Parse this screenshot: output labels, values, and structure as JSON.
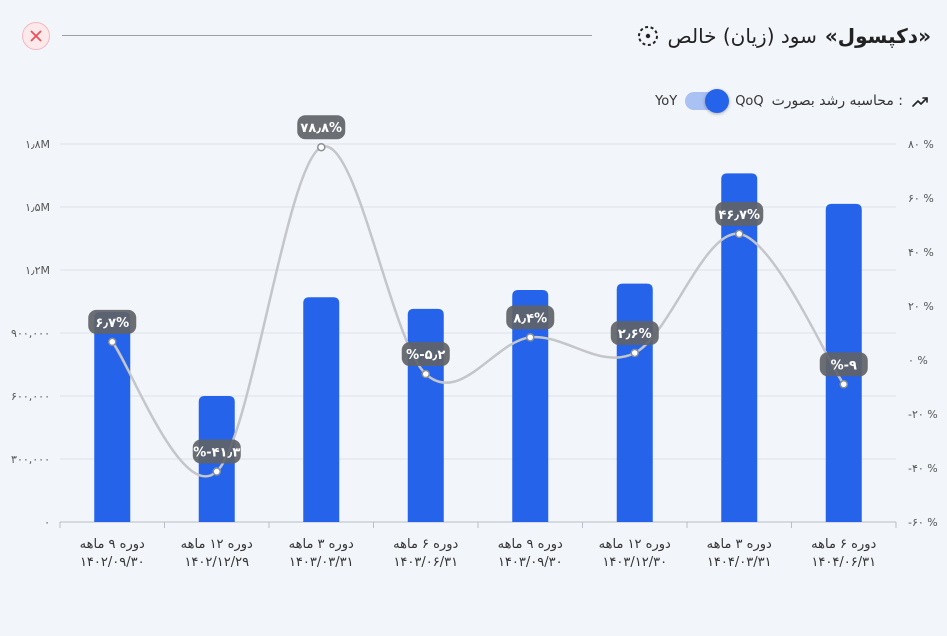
{
  "header": {
    "title_prefix": "سود (زیان) خالص",
    "title_company": "«دکپسول»"
  },
  "controls": {
    "growth_label": "محاسبه رشد بصورت :",
    "option_qoq": "QoQ",
    "option_yoy": "YoY",
    "selected": "QoQ"
  },
  "colors": {
    "bar": "#2563eb",
    "line": "#c4c6ca",
    "label_bg": "#5f6368",
    "close": "#e8505b"
  },
  "chart_data": {
    "type": "bar",
    "categories": [
      [
        "دوره ۹ ماهه",
        "۱۴۰۲/۰۹/۳۰"
      ],
      [
        "دوره ۱۲ ماهه",
        "۱۴۰۲/۱۲/۲۹"
      ],
      [
        "دوره ۳ ماهه",
        "۱۴۰۳/۰۳/۳۱"
      ],
      [
        "دوره ۶ ماهه",
        "۱۴۰۳/۰۶/۳۱"
      ],
      [
        "دوره ۹ ماهه",
        "۱۴۰۳/۰۹/۳۰"
      ],
      [
        "دوره ۱۲ ماهه",
        "۱۴۰۳/۱۲/۳۰"
      ],
      [
        "دوره ۳ ماهه",
        "۱۴۰۴/۰۳/۳۱"
      ],
      [
        "دوره ۶ ماهه",
        "۱۴۰۴/۰۶/۳۱"
      ]
    ],
    "series": [
      {
        "type": "bar",
        "values": [
          1000000,
          600000,
          1070000,
          1015000,
          1105000,
          1135000,
          1660000,
          1515000
        ]
      },
      {
        "type": "line",
        "axis": "right",
        "values": [
          6.7,
          -41.3,
          78.8,
          -5.2,
          8.4,
          2.6,
          46.7,
          -9
        ],
        "labels": [
          "۶٫۷%",
          "%-۴۱٫۳",
          "۷۸٫۸%",
          "%-۵٫۲",
          "۸٫۴%",
          "۲٫۶%",
          "۴۶٫۷%",
          "%-۹"
        ]
      }
    ],
    "y_left": {
      "ylim": [
        0,
        1800000
      ],
      "ticks": [
        0,
        300000,
        600000,
        900000,
        1200000,
        1500000,
        1800000
      ],
      "tick_labels": [
        "۰",
        "۳۰۰,۰۰۰",
        "۶۰۰,۰۰۰",
        "۹۰۰,۰۰۰",
        "۱٫۲M",
        "۱٫۵M",
        "۱٫۸M"
      ]
    },
    "y_right": {
      "ylim": [
        -60,
        80
      ],
      "ticks": [
        -60,
        -40,
        -20,
        0,
        20,
        40,
        60,
        80
      ],
      "tick_labels": [
        "-۶۰ %",
        "-۴۰ %",
        "-۲۰ %",
        "۰ %",
        "۲۰ %",
        "۴۰ %",
        "۶۰ %",
        "۸۰ %"
      ]
    },
    "grid": true
  }
}
